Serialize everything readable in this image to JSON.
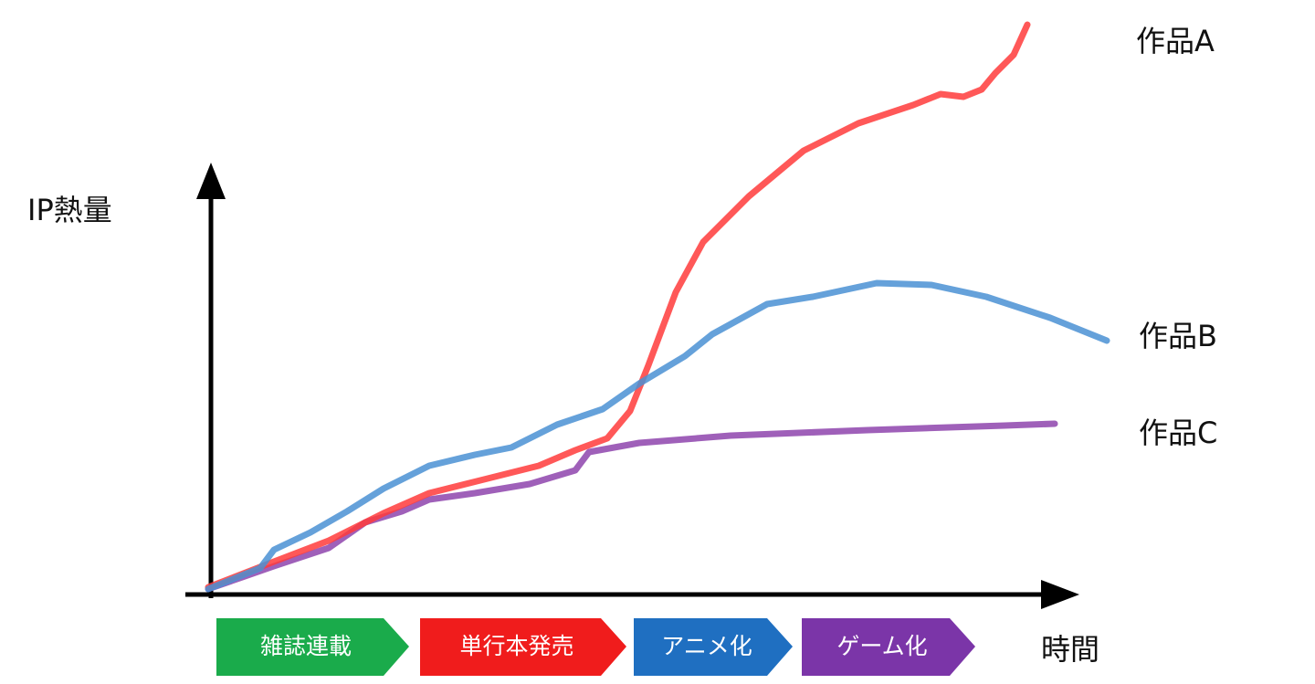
{
  "y_axis_label": "IP熱量",
  "x_axis_label": "時間",
  "works": [
    {
      "label": "作品A"
    },
    {
      "label": "作品B"
    },
    {
      "label": "作品C"
    }
  ],
  "phases": [
    {
      "label": "雑誌連載"
    },
    {
      "label": "単行本発売"
    },
    {
      "label": "アニメ化"
    },
    {
      "label": "ゲーム化"
    }
  ]
}
